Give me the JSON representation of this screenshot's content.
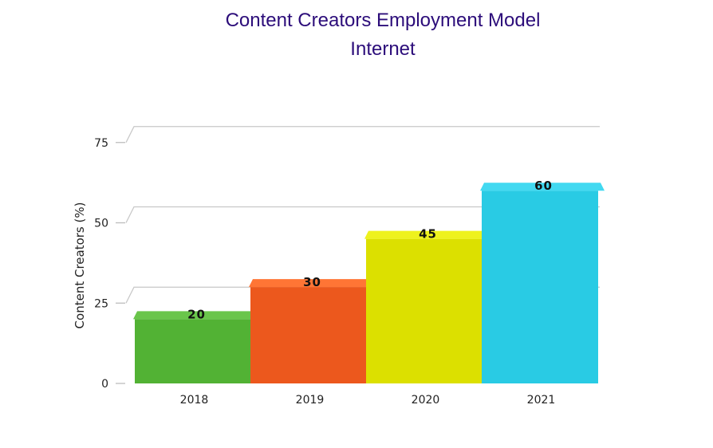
{
  "chart_data": {
    "type": "bar",
    "title": "Content Creators Employment Model",
    "subtitle": "Internet",
    "xlabel": "",
    "ylabel": "Content Creators (%)",
    "categories": [
      "2018",
      "2019",
      "2020",
      "2021"
    ],
    "values": [
      20,
      30,
      45,
      60
    ],
    "data_labels": [
      "20",
      "30",
      "45",
      "60"
    ],
    "y_ticks": [
      0,
      25,
      50,
      75
    ],
    "y_tick_labels": [
      "0",
      "25",
      "50",
      "75"
    ],
    "ylim": [
      0,
      80
    ],
    "colors": [
      "#52b234",
      "#ec581d",
      "#dce000",
      "#29cbe4"
    ],
    "top_colors": [
      "#6ac54b",
      "#ff7535",
      "#eef21e",
      "#42d9f1"
    ],
    "grid": true,
    "legend": "none"
  }
}
